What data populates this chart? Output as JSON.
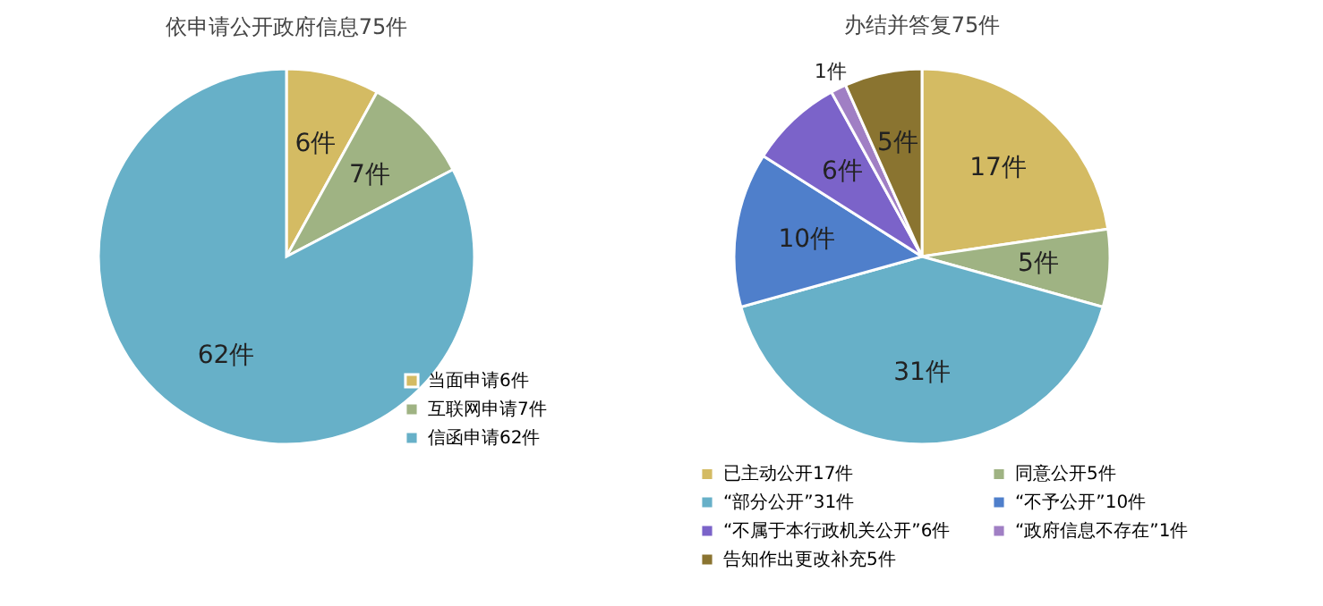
{
  "chart_data": [
    {
      "type": "pie",
      "title": "依申请公开政府信息75件",
      "categories": [
        "当面申请6件",
        "互联网申请7件",
        "信函申请62件"
      ],
      "values": [
        6,
        7,
        62
      ],
      "colors": [
        "#d4bb63",
        "#9fb383",
        "#67b0c8"
      ],
      "value_labels": [
        "6件",
        "7件",
        "62件"
      ],
      "legend": "bottom right"
    },
    {
      "type": "pie",
      "title": "办结并答复75件",
      "categories": [
        "已主动公开17件",
        "同意公开5件",
        "“部分公开”31件",
        "“不予公开”10件",
        "“不属于本行政机关公开”6件",
        "“政府信息不存在”1件",
        "告知作出更改补充5件"
      ],
      "values": [
        17,
        5,
        31,
        10,
        6,
        1,
        5
      ],
      "colors": [
        "#d4bb63",
        "#9fb383",
        "#67b0c8",
        "#4f7fcb",
        "#7b63c9",
        "#a07fc4",
        "#8a7430"
      ],
      "value_labels": [
        "17件",
        "5件",
        "31件",
        "10件",
        "6件",
        "1件",
        "5件"
      ],
      "legend": "bottom"
    }
  ]
}
